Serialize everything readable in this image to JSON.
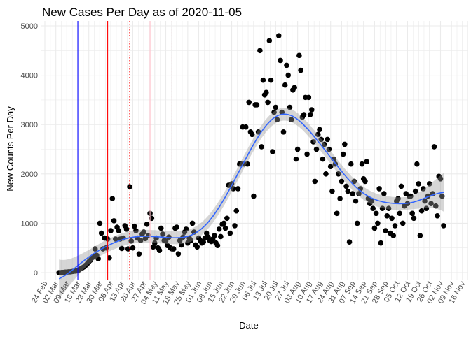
{
  "chart_data": {
    "type": "scatter",
    "title": "New Cases Per Day as of 2020-11-05",
    "xlabel": "Date",
    "ylabel": "New Counts Per Day",
    "ylim": [
      0,
      5000
    ],
    "xlim": [
      "2020-02-24",
      "2020-11-16"
    ],
    "yticks": [
      "0",
      "1000",
      "2000",
      "3000",
      "4000",
      "5000"
    ],
    "xticks": [
      "24 Feb",
      "02 Mar",
      "09 Mar",
      "16 Mar",
      "23 Mar",
      "30 Mar",
      "06 Apr",
      "13 Apr",
      "20 Apr",
      "27 Apr",
      "04 May",
      "11 May",
      "18 May",
      "25 May",
      "01 Jun",
      "08 Jun",
      "15 Jun",
      "22 Jun",
      "29 Jun",
      "06 Jul",
      "13 Jul",
      "20 Jul",
      "27 Jul",
      "03 Aug",
      "10 Aug",
      "17 Aug",
      "24 Aug",
      "31 Aug",
      "07 Sep",
      "14 Sep",
      "21 Sep",
      "28 Sep",
      "05 Oct",
      "12 Oct",
      "19 Oct",
      "26 Oct",
      "02 Nov",
      "09 Nov",
      "16 Nov"
    ],
    "grid": true,
    "smoother": {
      "method": "loess",
      "confidence_band": true,
      "color": "#3366FF"
    },
    "point_color": "#000000",
    "daily_values": [
      {
        "month": "2020-03",
        "first_day": 4,
        "values": [
          0,
          0,
          5,
          5,
          10,
          10,
          15,
          15,
          20,
          25,
          30,
          35,
          40,
          60,
          80,
          100,
          120,
          150,
          180,
          220,
          250,
          300,
          320,
          480,
          350,
          280,
          1000,
          800
        ]
      },
      {
        "month": "2020-04",
        "first_day": 1,
        "values": [
          480,
          700,
          500,
          680,
          300,
          850,
          1500,
          1050,
          680,
          920,
          850,
          680,
          490,
          700,
          950,
          880,
          480,
          1740,
          640,
          500,
          940,
          850,
          700,
          380,
          650,
          780,
          820,
          690,
          980,
          750
        ]
      },
      {
        "month": "2020-05",
        "first_day": 1,
        "values": [
          1200,
          1100,
          520,
          600,
          700,
          500,
          450,
          900,
          780,
          650,
          640,
          550,
          720,
          500,
          480,
          480,
          900,
          920,
          380,
          650,
          560,
          720,
          820,
          880,
          600,
          700,
          650,
          1000,
          820,
          560,
          520
        ]
      },
      {
        "month": "2020-06",
        "first_day": 1,
        "values": [
          700,
          650,
          600,
          620,
          700,
          800,
          720,
          650,
          630,
          680,
          750,
          600,
          550,
          880,
          730,
          980,
          1000,
          900,
          1100,
          1770,
          800,
          1800,
          1700,
          950,
          1250,
          1700,
          2200,
          2200,
          2950,
          2200
        ]
      },
      {
        "month": "2020-07",
        "first_day": 1,
        "values": [
          2950,
          2200,
          3450,
          2850,
          2800,
          1550,
          3400,
          3400,
          2850,
          4500,
          2550,
          3900,
          3600,
          3650,
          3450,
          4700,
          3900,
          2450,
          3250,
          3350,
          3100,
          4800,
          4300,
          3250,
          2850,
          3800,
          4200,
          4000,
          3350,
          3100,
          3700
        ]
      },
      {
        "month": "2020-08",
        "first_day": 1,
        "values": [
          3750,
          2300,
          2500,
          4400,
          4100,
          3150,
          3200,
          3550,
          2400,
          3550,
          3200,
          3300,
          2650,
          1850,
          2500,
          2800,
          2900,
          2700,
          2300,
          2600,
          2000,
          2700,
          2500,
          2150,
          1650,
          2300,
          2200,
          1200,
          2000,
          1500,
          1850
        ]
      },
      {
        "month": "2020-09",
        "first_day": 1,
        "values": [
          2400,
          2600,
          1750,
          1650,
          620,
          2200,
          1600,
          1850,
          1450,
          1000,
          1600,
          1700,
          2200,
          1900,
          1850,
          2250,
          1500,
          1400,
          1450,
          1300,
          900,
          1200,
          1000,
          1700,
          600,
          1300,
          1600,
          850,
          1150,
          1300
        ]
      },
      {
        "month": "2020-10",
        "first_day": 1,
        "values": [
          800,
          1100,
          750,
          950,
          1450,
          1500,
          1200,
          1750,
          1000,
          1350,
          1600,
          1400,
          1550,
          1550,
          1200,
          1100,
          1650,
          2200,
          1800,
          750,
          1250,
          1700,
          1450,
          1300,
          1550,
          1800,
          1400,
          1600,
          2550,
          1350,
          1150
        ]
      },
      {
        "month": "2020-11",
        "first_day": 1,
        "values": [
          1950,
          1900,
          1550,
          950
        ]
      }
    ],
    "reference_lines": [
      {
        "date": "2020-03-16",
        "color": "#0000FF",
        "style": "solid"
      },
      {
        "date": "2020-04-04",
        "color": "#FF0000",
        "style": "solid"
      },
      {
        "date": "2020-04-18",
        "color": "#FF0000",
        "style": "dotted"
      },
      {
        "date": "2020-05-01",
        "color": "#FFC0CB",
        "style": "solid"
      },
      {
        "date": "2020-05-15",
        "color": "#FFC0CB",
        "style": "dotted"
      }
    ]
  }
}
